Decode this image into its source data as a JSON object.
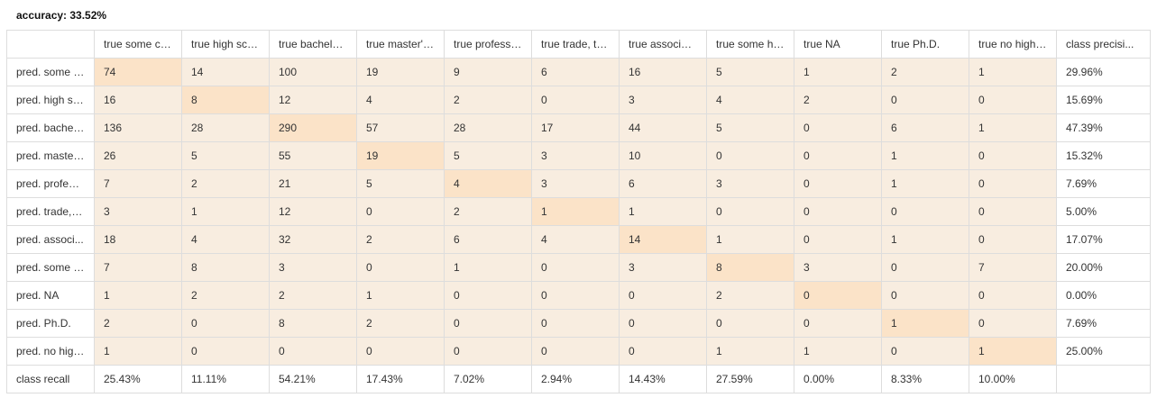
{
  "accuracy_label": "accuracy: 33.52%",
  "columns": [
    "true some co...",
    "true high sch...",
    "true bachelor...",
    "true master's...",
    "true professi...",
    "true trade, te...",
    "true associat...",
    "true some hi...",
    "true NA",
    "true Ph.D.",
    "true no high ...",
    "class precisi..."
  ],
  "rows": [
    {
      "label": "pred. some c...",
      "values": [
        "74",
        "14",
        "100",
        "19",
        "9",
        "6",
        "16",
        "5",
        "1",
        "2",
        "1"
      ],
      "precision": "29.96%"
    },
    {
      "label": "pred. high sc...",
      "values": [
        "16",
        "8",
        "12",
        "4",
        "2",
        "0",
        "3",
        "4",
        "2",
        "0",
        "0"
      ],
      "precision": "15.69%"
    },
    {
      "label": "pred. bachel...",
      "values": [
        "136",
        "28",
        "290",
        "57",
        "28",
        "17",
        "44",
        "5",
        "0",
        "6",
        "1"
      ],
      "precision": "47.39%"
    },
    {
      "label": "pred. master'...",
      "values": [
        "26",
        "5",
        "55",
        "19",
        "5",
        "3",
        "10",
        "0",
        "0",
        "1",
        "0"
      ],
      "precision": "15.32%"
    },
    {
      "label": "pred. profess...",
      "values": [
        "7",
        "2",
        "21",
        "5",
        "4",
        "3",
        "6",
        "3",
        "0",
        "1",
        "0"
      ],
      "precision": "7.69%"
    },
    {
      "label": "pred. trade, t...",
      "values": [
        "3",
        "1",
        "12",
        "0",
        "2",
        "1",
        "1",
        "0",
        "0",
        "0",
        "0"
      ],
      "precision": "5.00%"
    },
    {
      "label": "pred. associ...",
      "values": [
        "18",
        "4",
        "32",
        "2",
        "6",
        "4",
        "14",
        "1",
        "0",
        "1",
        "0"
      ],
      "precision": "17.07%"
    },
    {
      "label": "pred. some h...",
      "values": [
        "7",
        "8",
        "3",
        "0",
        "1",
        "0",
        "3",
        "8",
        "3",
        "0",
        "7"
      ],
      "precision": "20.00%"
    },
    {
      "label": "pred. NA",
      "values": [
        "1",
        "2",
        "2",
        "1",
        "0",
        "0",
        "0",
        "2",
        "0",
        "0",
        "0"
      ],
      "precision": "0.00%"
    },
    {
      "label": "pred. Ph.D.",
      "values": [
        "2",
        "0",
        "8",
        "2",
        "0",
        "0",
        "0",
        "0",
        "0",
        "1",
        "0"
      ],
      "precision": "7.69%"
    },
    {
      "label": "pred. no high...",
      "values": [
        "1",
        "0",
        "0",
        "0",
        "0",
        "0",
        "0",
        "1",
        "1",
        "0",
        "1"
      ],
      "precision": "25.00%"
    }
  ],
  "recall_row": {
    "label": "class recall",
    "values": [
      "25.43%",
      "11.11%",
      "54.21%",
      "17.43%",
      "7.02%",
      "2.94%",
      "14.43%",
      "27.59%",
      "0.00%",
      "8.33%",
      "10.00%"
    ]
  },
  "colors": {
    "cell_background": "#f8ede0",
    "diagonal_background": "#fbe3c8",
    "border": "#dddddd"
  }
}
